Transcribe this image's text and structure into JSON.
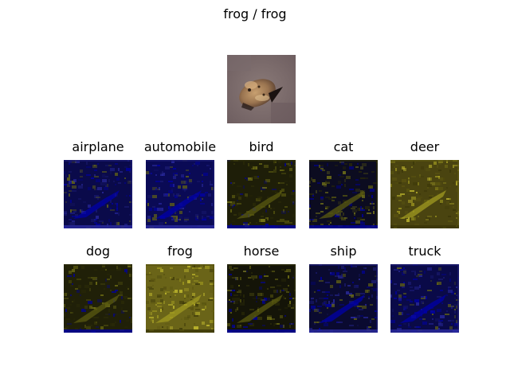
{
  "figure": {
    "title": "frog / frog"
  },
  "input_image": {
    "icon": "frog-photo-icon"
  },
  "saliency_maps": [
    {
      "label": "airplane",
      "base_color": "#0a0a4a",
      "tone": "blue"
    },
    {
      "label": "automobile",
      "base_color": "#0a0a55",
      "tone": "blue"
    },
    {
      "label": "bird",
      "base_color": "#1e1e08",
      "tone": "dark"
    },
    {
      "label": "cat",
      "base_color": "#0c0c20",
      "tone": "dark"
    },
    {
      "label": "deer",
      "base_color": "#4a4410",
      "tone": "olive"
    },
    {
      "label": "dog",
      "base_color": "#202008",
      "tone": "dark"
    },
    {
      "label": "frog",
      "base_color": "#6a6418",
      "tone": "olive"
    },
    {
      "label": "horse",
      "base_color": "#141408",
      "tone": "dark"
    },
    {
      "label": "ship",
      "base_color": "#0a0a30",
      "tone": "blue"
    },
    {
      "label": "truck",
      "base_color": "#0a0a48",
      "tone": "blue"
    }
  ]
}
